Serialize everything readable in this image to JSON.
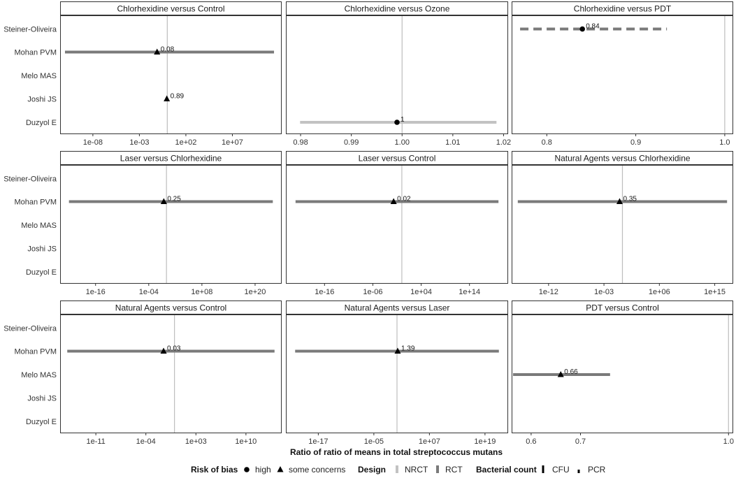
{
  "chart_data": {
    "type": "forest",
    "xlabel": "Ratio of ratio of means in total streptococcus mutans",
    "studies": [
      "Steiner-Oliveira",
      "Mohan PVM",
      "Melo MAS",
      "Joshi JS",
      "Duzyol E"
    ],
    "facets": [
      {
        "title": "Chlorhexidine versus Control",
        "scale": "log",
        "xlim": [
          3e-12,
          2000000000000.0
        ],
        "ticks": [
          {
            "v": 1e-08,
            "label": "1e-08"
          },
          {
            "v": 0.001,
            "label": "1e-03"
          },
          {
            "v": 100.0,
            "label": "1e+02"
          },
          {
            "v": 10000000.0,
            "label": "1e+07"
          }
        ],
        "ref": 1,
        "points": [
          {
            "study": "Mohan PVM",
            "est": 0.08,
            "lo": 1e-11,
            "hi": 300000000000.0,
            "label": "0.08",
            "bias": "some concerns",
            "design": "RCT",
            "count": "CFU"
          },
          {
            "study": "Joshi JS",
            "est": 0.89,
            "label": "0.89",
            "bias": "some concerns",
            "design": "RCT",
            "count": "CFU"
          }
        ]
      },
      {
        "title": "Chlorhexidine versus Ozone",
        "scale": "linear",
        "xlim": [
          0.9771,
          1.0209
        ],
        "ticks": [
          {
            "v": 0.98,
            "label": "0.98"
          },
          {
            "v": 0.99,
            "label": "0.99"
          },
          {
            "v": 1.0,
            "label": "1.00"
          },
          {
            "v": 1.01,
            "label": "1.01"
          },
          {
            "v": 1.02,
            "label": "1.02"
          }
        ],
        "ref": 1,
        "points": [
          {
            "study": "Duzyol E",
            "est": 0.999,
            "lo": 0.9799,
            "hi": 1.0186,
            "label": "1",
            "bias": "high",
            "design": "NRCT",
            "count": "CFU"
          }
        ]
      },
      {
        "title": "Chlorhexidine versus PDT",
        "scale": "linear",
        "xlim": [
          0.7605,
          1.0095
        ],
        "ticks": [
          {
            "v": 0.8,
            "label": "0.8"
          },
          {
            "v": 0.9,
            "label": "0.9"
          },
          {
            "v": 1.0,
            "label": "1.0"
          }
        ],
        "ref": 1,
        "points": [
          {
            "study": "Steiner-Oliveira",
            "est": 0.84,
            "lo": 0.77,
            "hi": 0.935,
            "label": "0.84",
            "bias": "high",
            "design": "RCT",
            "count": "PCR"
          }
        ]
      },
      {
        "title": "Laser versus Chlorhexidine",
        "scale": "log",
        "xlim": [
          1e-24,
          1e+26
        ],
        "ticks": [
          {
            "v": 1e-16,
            "label": "1e-16"
          },
          {
            "v": 0.0001,
            "label": "1e-04"
          },
          {
            "v": 100000000.0,
            "label": "1e+08"
          },
          {
            "v": 1e+20,
            "label": "1e+20"
          }
        ],
        "ref": 1,
        "points": [
          {
            "study": "Mohan PVM",
            "est": 0.25,
            "lo": 1e-22,
            "hi": 1e+24,
            "label": "0.25",
            "bias": "some concerns",
            "design": "RCT",
            "count": "CFU"
          }
        ]
      },
      {
        "title": "Laser versus Control",
        "scale": "log",
        "xlim": [
          1e-24,
          1e+22
        ],
        "ticks": [
          {
            "v": 1e-16,
            "label": "1e-16"
          },
          {
            "v": 1e-06,
            "label": "1e-06"
          },
          {
            "v": 10000.0,
            "label": "1e+04"
          },
          {
            "v": 100000000000000.0,
            "label": "1e+14"
          }
        ],
        "ref": 1,
        "points": [
          {
            "study": "Mohan PVM",
            "est": 0.02,
            "lo": 1e-22,
            "hi": 1e+20,
            "label": "0.02",
            "bias": "some concerns",
            "design": "RCT",
            "count": "CFU"
          }
        ]
      },
      {
        "title": "Natural Agents versus Chlorhexidine",
        "scale": "log",
        "xlim": [
          1e-18,
          1e+18
        ],
        "ticks": [
          {
            "v": 1e-12,
            "label": "1e-12"
          },
          {
            "v": 0.001,
            "label": "1e-03"
          },
          {
            "v": 1000000.0,
            "label": "1e+06"
          },
          {
            "v": 1000000000000000.0,
            "label": "1e+15"
          }
        ],
        "ref": 1,
        "points": [
          {
            "study": "Mohan PVM",
            "est": 0.35,
            "lo": 1e-17,
            "hi": 1e+17,
            "label": "0.35",
            "bias": "some concerns",
            "design": "RCT",
            "count": "CFU"
          }
        ]
      },
      {
        "title": "Natural Agents versus Control",
        "scale": "log",
        "xlim": [
          1e-16,
          1000000000000000.0
        ],
        "ticks": [
          {
            "v": 1e-11,
            "label": "1e-11"
          },
          {
            "v": 0.0001,
            "label": "1e-04"
          },
          {
            "v": 1000.0,
            "label": "1e+03"
          },
          {
            "v": 10000000000.0,
            "label": "1e+10"
          }
        ],
        "ref": 1,
        "points": [
          {
            "study": "Mohan PVM",
            "est": 0.03,
            "lo": 1e-15,
            "hi": 100000000000000.0,
            "label": "0.03",
            "bias": "some concerns",
            "design": "RCT",
            "count": "CFU"
          }
        ]
      },
      {
        "title": "Natural Agents versus Laser",
        "scale": "log",
        "xlim": [
          1e-24,
          1e+24
        ],
        "ticks": [
          {
            "v": 1e-17,
            "label": "1e-17"
          },
          {
            "v": 1e-05,
            "label": "1e-05"
          },
          {
            "v": 10000000.0,
            "label": "1e+07"
          },
          {
            "v": 1e+19,
            "label": "1e+19"
          }
        ],
        "ref": 1,
        "points": [
          {
            "study": "Mohan PVM",
            "est": 1.39,
            "lo": 1e-22,
            "hi": 1e+22,
            "label": "1.39",
            "bias": "some concerns",
            "design": "RCT",
            "count": "CFU"
          }
        ]
      },
      {
        "title": "PDT versus Control",
        "scale": "linear",
        "xlim": [
          0.5605,
          1.0095
        ],
        "ticks": [
          {
            "v": 0.6,
            "label": "0.6"
          },
          {
            "v": 0.7,
            "label": "0.7"
          },
          {
            "v": 1.0,
            "label": "1.0"
          }
        ],
        "ref": 1,
        "points": [
          {
            "study": "Melo MAS",
            "est": 0.66,
            "lo": 0.56,
            "hi": 0.76,
            "label": "0.66",
            "bias": "some concerns",
            "design": "RCT",
            "count": "CFU"
          }
        ]
      }
    ],
    "legend": {
      "position": "bottom",
      "groups": [
        {
          "title": "Risk of bias",
          "items": [
            {
              "label": "high",
              "symbol": "circle"
            },
            {
              "label": "some concerns",
              "symbol": "triangle"
            }
          ]
        },
        {
          "title": "Design",
          "items": [
            {
              "label": "NRCT",
              "color": "#c2c2c2"
            },
            {
              "label": "RCT",
              "color": "#7a7a7a"
            }
          ]
        },
        {
          "title": "Bacterial count",
          "items": [
            {
              "label": "CFU",
              "linetype": "solid"
            },
            {
              "label": "PCR",
              "linetype": "dashed"
            }
          ]
        }
      ]
    },
    "colors": {
      "NRCT": "#c2c2c2",
      "RCT": "#7a7a7a",
      "reference_line": "#bdbdbd",
      "strip_border": "#333333",
      "marker": "#000000"
    }
  }
}
